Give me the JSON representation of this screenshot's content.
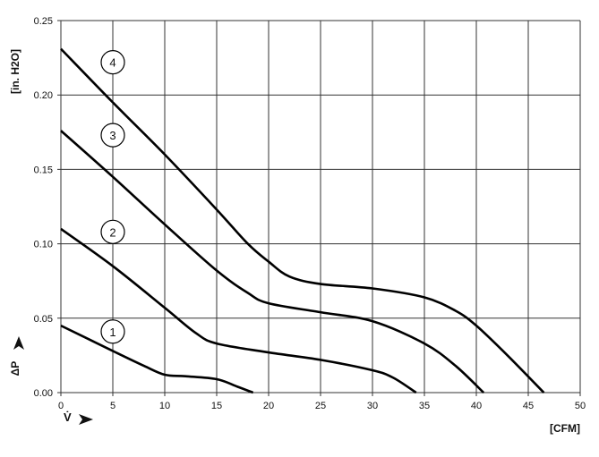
{
  "chart_data": {
    "type": "line",
    "xlabel": "[CFM]",
    "ylabel": "[in. H2O]",
    "x_axis_symbol": "V̇",
    "y_axis_symbol": "ΔP",
    "xlim": [
      0,
      50
    ],
    "ylim": [
      0,
      0.25
    ],
    "xticks": [
      "0",
      "5",
      "10",
      "15",
      "20",
      "25",
      "30",
      "35",
      "40",
      "45",
      "50"
    ],
    "yticks": [
      "0.00",
      "0.05",
      "0.10",
      "0.15",
      "0.20",
      "0.25"
    ],
    "grid": true,
    "series": [
      {
        "name": "1",
        "label_at": [
          5,
          0.041
        ],
        "points": [
          [
            0,
            0.045
          ],
          [
            5,
            0.028
          ],
          [
            8,
            0.018
          ],
          [
            10,
            0.012
          ],
          [
            12,
            0.011
          ],
          [
            15,
            0.009
          ],
          [
            17,
            0.004
          ],
          [
            18.5,
            0
          ]
        ]
      },
      {
        "name": "2",
        "label_at": [
          5,
          0.108
        ],
        "points": [
          [
            0,
            0.11
          ],
          [
            5,
            0.085
          ],
          [
            10,
            0.057
          ],
          [
            13,
            0.04
          ],
          [
            15,
            0.033
          ],
          [
            20,
            0.027
          ],
          [
            25,
            0.022
          ],
          [
            30,
            0.015
          ],
          [
            32,
            0.01
          ],
          [
            34.2,
            0
          ]
        ]
      },
      {
        "name": "3",
        "label_at": [
          5,
          0.173
        ],
        "points": [
          [
            0,
            0.176
          ],
          [
            5,
            0.145
          ],
          [
            10,
            0.113
          ],
          [
            15,
            0.082
          ],
          [
            18,
            0.067
          ],
          [
            20,
            0.06
          ],
          [
            25,
            0.054
          ],
          [
            30,
            0.048
          ],
          [
            35,
            0.033
          ],
          [
            38,
            0.018
          ],
          [
            40.7,
            0
          ]
        ]
      },
      {
        "name": "4",
        "label_at": [
          5,
          0.222
        ],
        "points": [
          [
            0,
            0.231
          ],
          [
            5,
            0.195
          ],
          [
            10,
            0.16
          ],
          [
            15,
            0.123
          ],
          [
            18,
            0.1
          ],
          [
            20,
            0.088
          ],
          [
            22,
            0.078
          ],
          [
            25,
            0.073
          ],
          [
            30,
            0.07
          ],
          [
            35,
            0.064
          ],
          [
            38,
            0.055
          ],
          [
            40,
            0.045
          ],
          [
            43,
            0.025
          ],
          [
            46.5,
            0
          ]
        ]
      }
    ]
  }
}
